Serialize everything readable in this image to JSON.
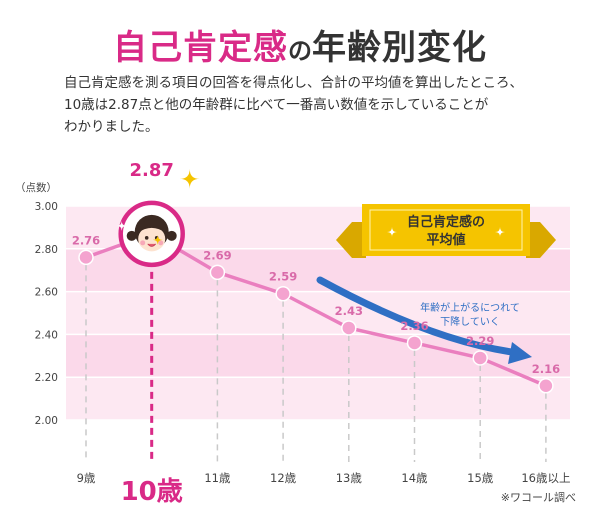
{
  "heading": {
    "highlight": "自己肯定感",
    "particle": "の",
    "rest": "年齢別変化"
  },
  "description": [
    "自己肯定感を測る項目の回答を得点化し、合計の平均値を算出したところ、",
    "10歳は2.87点と他の年齢群に比べて一番高い数値を示していることが",
    "わかりました。"
  ],
  "legend_badge": [
    "自己肯定感の",
    "平均値"
  ],
  "trend_note": [
    "年齢が上がるにつれて",
    "下降していく"
  ],
  "source_note": "※ワコール調べ",
  "colors": {
    "accent": "#d92a87",
    "line": "#ea7fbf",
    "point_fill": "#f4a3cf",
    "band_light": "#fde8f2",
    "band_dark": "#fbd9ea",
    "arrow": "#2f6fc4",
    "badge_gold": "#f5c400"
  },
  "chart_data": {
    "type": "line",
    "title": "自己肯定感の年齢別変化",
    "ylabel": "（点数）",
    "xlabel": "",
    "categories": [
      "9歳",
      "10歳",
      "11歳",
      "12歳",
      "13歳",
      "14歳",
      "15歳",
      "16歳以上"
    ],
    "values": [
      2.76,
      2.87,
      2.69,
      2.59,
      2.43,
      2.36,
      2.29,
      2.16
    ],
    "value_labels": [
      "2.76",
      "2.87",
      "2.69",
      "2.59",
      "2.43",
      "2.36",
      "2.29",
      "2.16"
    ],
    "highlight_index": 1,
    "ylim": [
      2.0,
      3.0
    ],
    "y_ticks": [
      "3.00",
      "2.80",
      "2.60",
      "2.40",
      "2.20",
      "2.00"
    ],
    "grid": "horizontal bands",
    "legend": "top-right"
  }
}
